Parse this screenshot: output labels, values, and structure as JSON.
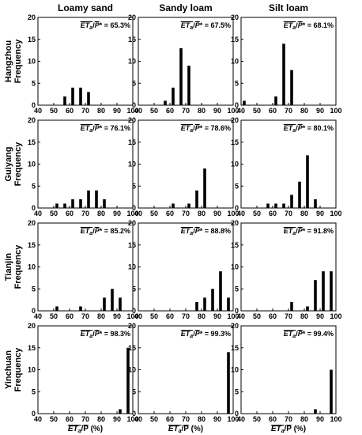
{
  "figure": {
    "columns": [
      "Loamy sand",
      "Sandy loam",
      "Silt loam"
    ],
    "rows": [
      "Hangzhou",
      "Guiyang",
      "Tianjin",
      "Yinchuan"
    ],
    "ylabel": "Frequency",
    "xlabel_main": "ET",
    "xlabel_sub": "a",
    "xlabel_rest": "/P (%)",
    "annot_prefix_main": "ET",
    "annot_prefix_sub": "a",
    "annot_prefix_slash": "/",
    "annot_prefix_p": "P",
    "annot_prefix_star": "* = ",
    "annot_prefix_p_plain": "P"
  },
  "chart_data": [
    {
      "type": "bar",
      "row": "Hangzhou",
      "column": "Loamy sand",
      "annotation": "65.3%",
      "xlim": [
        40,
        100
      ],
      "ylim": [
        0,
        20
      ],
      "x": [
        57,
        62,
        67,
        72
      ],
      "values": [
        2,
        4,
        4,
        3
      ]
    },
    {
      "type": "bar",
      "row": "Hangzhou",
      "column": "Sandy loam",
      "annotation": "67.5%",
      "xlim": [
        40,
        100
      ],
      "ylim": [
        0,
        20
      ],
      "x": [
        57,
        62,
        67,
        72
      ],
      "values": [
        1,
        4,
        13,
        9
      ]
    },
    {
      "type": "bar",
      "row": "Hangzhou",
      "column": "Silt loam",
      "annotation": "68.1%",
      "xlim": [
        40,
        100
      ],
      "ylim": [
        0,
        20
      ],
      "x": [
        42,
        62,
        67,
        72
      ],
      "values": [
        1,
        2,
        14,
        8
      ]
    },
    {
      "type": "bar",
      "row": "Guiyang",
      "column": "Loamy sand",
      "annotation": "76.1%",
      "xlim": [
        40,
        100
      ],
      "ylim": [
        0,
        20
      ],
      "x": [
        52,
        57,
        62,
        67,
        72,
        77,
        82
      ],
      "values": [
        1,
        1,
        2,
        2,
        4,
        4,
        2
      ]
    },
    {
      "type": "bar",
      "row": "Guiyang",
      "column": "Sandy loam",
      "annotation": "78.6%",
      "xlim": [
        40,
        100
      ],
      "ylim": [
        0,
        20
      ],
      "x": [
        62,
        72,
        77,
        82
      ],
      "values": [
        1,
        1,
        4,
        9
      ]
    },
    {
      "type": "bar",
      "row": "Guiyang",
      "column": "Silt loam",
      "annotation": "80.1%",
      "xlim": [
        40,
        100
      ],
      "ylim": [
        0,
        20
      ],
      "x": [
        57,
        62,
        67,
        72,
        77,
        82,
        87
      ],
      "values": [
        1,
        1,
        1,
        3,
        6,
        12,
        2
      ]
    },
    {
      "type": "bar",
      "row": "Tianjin",
      "column": "Loamy sand",
      "annotation": "85.2%",
      "xlim": [
        40,
        100
      ],
      "ylim": [
        0,
        20
      ],
      "x": [
        52,
        67,
        82,
        87,
        92
      ],
      "values": [
        1,
        1,
        3,
        5,
        3
      ]
    },
    {
      "type": "bar",
      "row": "Tianjin",
      "column": "Sandy loam",
      "annotation": "88.8%",
      "xlim": [
        40,
        100
      ],
      "ylim": [
        0,
        20
      ],
      "x": [
        77,
        82,
        87,
        92,
        97
      ],
      "values": [
        2,
        3,
        5,
        9,
        3
      ]
    },
    {
      "type": "bar",
      "row": "Tianjin",
      "column": "Silt loam",
      "annotation": "91.8%",
      "xlim": [
        40,
        100
      ],
      "ylim": [
        0,
        20
      ],
      "x": [
        72,
        82,
        87,
        92,
        97
      ],
      "values": [
        2,
        1,
        7,
        9,
        9
      ]
    },
    {
      "type": "bar",
      "row": "Yinchuan",
      "column": "Loamy sand",
      "annotation": "98.3%",
      "xlim": [
        40,
        100
      ],
      "ylim": [
        0,
        20
      ],
      "x": [
        92,
        97
      ],
      "values": [
        1,
        15
      ]
    },
    {
      "type": "bar",
      "row": "Yinchuan",
      "column": "Sandy loam",
      "annotation": "99.3%",
      "xlim": [
        40,
        100
      ],
      "ylim": [
        0,
        20
      ],
      "x": [
        97
      ],
      "values": [
        14
      ]
    },
    {
      "type": "bar",
      "row": "Yinchuan",
      "column": "Silt loam",
      "annotation": "99.4%",
      "xlim": [
        40,
        100
      ],
      "ylim": [
        0,
        20
      ],
      "x": [
        87,
        97
      ],
      "values": [
        1,
        10
      ]
    }
  ],
  "axes": {
    "xticks": [
      40,
      50,
      60,
      70,
      80,
      90,
      100
    ],
    "yticks": [
      0,
      5,
      10,
      15,
      20
    ]
  }
}
